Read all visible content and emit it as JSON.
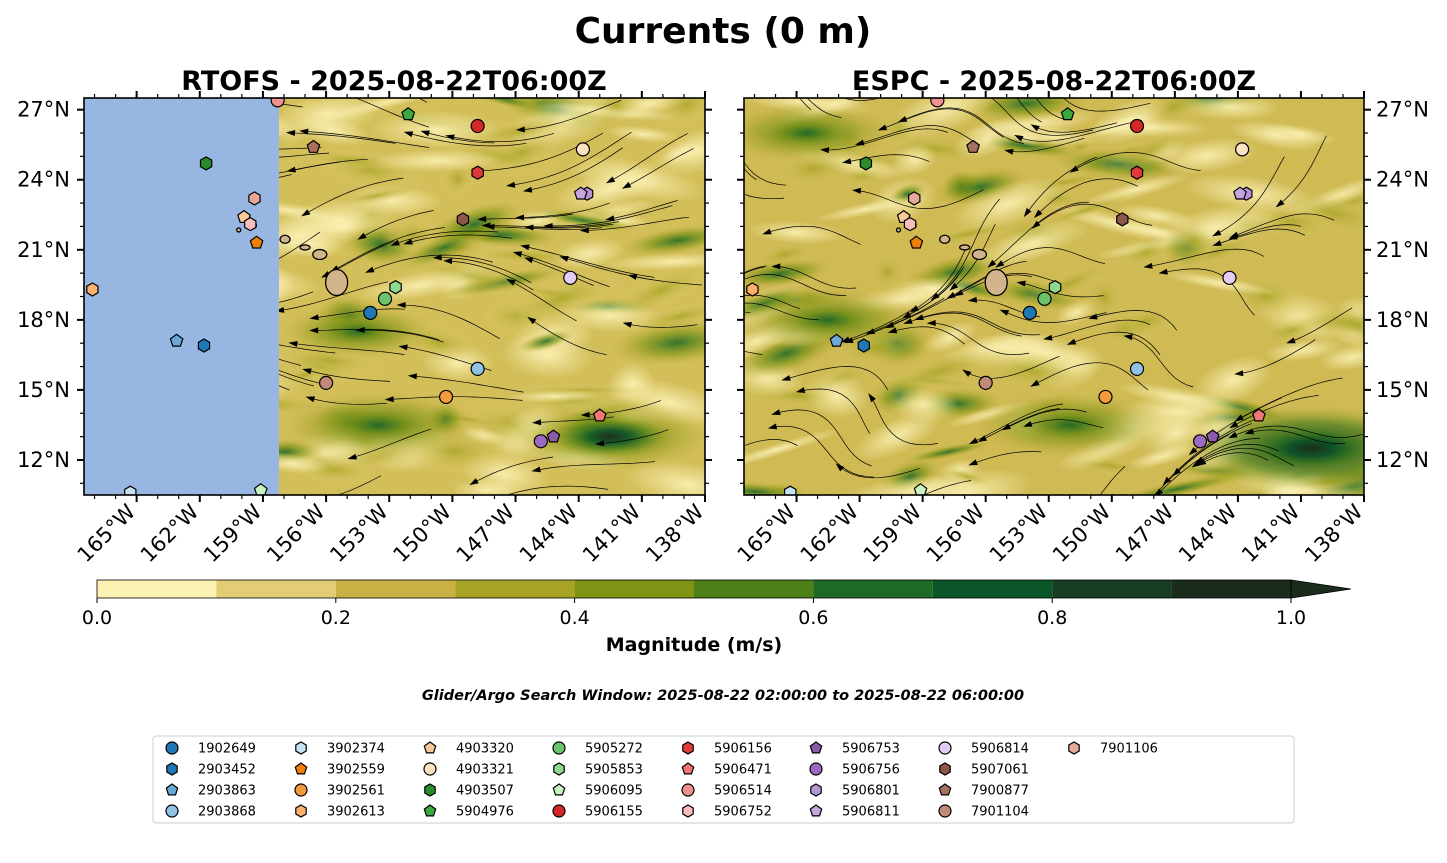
{
  "figure_title": "Currents (0 m)",
  "search_window_note": "Glider/Argo Search Window: 2025-08-22 02:00:00 to 2025-08-22 06:00:00",
  "chart_data": [
    {
      "type": "map",
      "panel": "left",
      "title": "RTOFS - 2025-08-22T06:00Z",
      "field": "surface current magnitude (m/s) with streamlines",
      "lon_range": [
        -167.5,
        -138
      ],
      "lat_range": [
        10.5,
        27.5
      ],
      "xticks": [
        -165,
        -162,
        -159,
        -156,
        -153,
        -150,
        -147,
        -144,
        -141,
        -138
      ],
      "xtick_labels": [
        "165°W",
        "162°W",
        "159°W",
        "156°W",
        "153°W",
        "150°W",
        "147°W",
        "144°W",
        "141°W",
        "138°W"
      ],
      "yticks": [
        12,
        15,
        18,
        21,
        24,
        27
      ],
      "ytick_labels": [
        "12°N",
        "15°N",
        "18°N",
        "21°N",
        "24°N",
        "27°N"
      ],
      "yaxis_side": "left",
      "no_data_west_of_lon": -158.2,
      "strong_current_areas": [
        {
          "lon": -153.5,
          "lat": 13.5,
          "magnitude": 0.7
        },
        {
          "lon": -142.5,
          "lat": 13.0,
          "magnitude": 0.75
        },
        {
          "lon": -154.5,
          "lat": 17.5,
          "magnitude": 0.45
        }
      ]
    },
    {
      "type": "map",
      "panel": "right",
      "title": "ESPC - 2025-08-22T06:00Z",
      "field": "surface current magnitude (m/s) with streamlines",
      "lon_range": [
        -167.5,
        -138
      ],
      "lat_range": [
        10.5,
        27.5
      ],
      "xticks": [
        -165,
        -162,
        -159,
        -156,
        -153,
        -150,
        -147,
        -144,
        -141,
        -138
      ],
      "xtick_labels": [
        "165°W",
        "162°W",
        "159°W",
        "156°W",
        "153°W",
        "150°W",
        "147°W",
        "144°W",
        "141°W",
        "138°W"
      ],
      "yticks": [
        12,
        15,
        18,
        21,
        24,
        27
      ],
      "ytick_labels": [
        "12°N",
        "15°N",
        "18°N",
        "21°N",
        "24°N",
        "27°N"
      ],
      "yaxis_side": "right",
      "strong_current_areas": [
        {
          "lon": -140.5,
          "lat": 12.5,
          "magnitude": 0.95
        },
        {
          "lon": -152.0,
          "lat": 13.5,
          "magnitude": 0.65
        },
        {
          "lon": -163.5,
          "lat": 18.0,
          "magnitude": 0.6
        },
        {
          "lon": -164.5,
          "lat": 26.0,
          "magnitude": 0.55
        }
      ]
    }
  ],
  "colorbar": {
    "label": "Magnitude (m/s)",
    "min": 0.0,
    "max": 1.0,
    "extend": "max",
    "tick_values": [
      0.0,
      0.2,
      0.4,
      0.6,
      0.8,
      1.0
    ],
    "tick_labels": [
      "0.0",
      "0.2",
      "0.4",
      "0.6",
      "0.8",
      "1.0"
    ],
    "levels": [
      {
        "from": 0.0,
        "to": 0.1,
        "color": "#fbf1b3"
      },
      {
        "from": 0.1,
        "to": 0.2,
        "color": "#e3cd74"
      },
      {
        "from": 0.2,
        "to": 0.3,
        "color": "#c9b243"
      },
      {
        "from": 0.3,
        "to": 0.4,
        "color": "#a7a424"
      },
      {
        "from": 0.4,
        "to": 0.5,
        "color": "#7f9414"
      },
      {
        "from": 0.5,
        "to": 0.6,
        "color": "#4d8019"
      },
      {
        "from": 0.6,
        "to": 0.7,
        "color": "#206a27"
      },
      {
        "from": 0.7,
        "to": 0.8,
        "color": "#0b5628"
      },
      {
        "from": 0.8,
        "to": 0.9,
        "color": "#173d24"
      },
      {
        "from": 0.9,
        "to": 1.0,
        "color": "#1c2c1c"
      }
    ]
  },
  "platforms": [
    {
      "id": "1902649",
      "marker": "circle",
      "color": "#1f77b4",
      "lon": -153.9,
      "lat": 18.3
    },
    {
      "id": "2903452",
      "marker": "hexagon",
      "color": "#1f77b4",
      "lon": -161.8,
      "lat": 16.9
    },
    {
      "id": "2903863",
      "marker": "pentagon",
      "color": "#6aa8d8",
      "lon": -163.1,
      "lat": 17.1
    },
    {
      "id": "2903868",
      "marker": "circle",
      "color": "#8fc2e4",
      "lon": -148.8,
      "lat": 15.9
    },
    {
      "id": "3902374",
      "marker": "hexagon",
      "color": "#c6e2f4",
      "lon": -165.3,
      "lat": 10.6
    },
    {
      "id": "3902559",
      "marker": "pentagon",
      "color": "#f07f0a",
      "lon": -159.3,
      "lat": 21.3
    },
    {
      "id": "3902561",
      "marker": "circle",
      "color": "#f39a3c",
      "lon": -150.3,
      "lat": 14.7
    },
    {
      "id": "3902613",
      "marker": "hexagon",
      "color": "#fbb06e",
      "lon": -167.1,
      "lat": 19.3
    },
    {
      "id": "4903320",
      "marker": "pentagon",
      "color": "#f9c99a",
      "lon": -159.9,
      "lat": 22.4
    },
    {
      "id": "4903321",
      "marker": "circle",
      "color": "#fde2c2",
      "lon": -143.8,
      "lat": 25.3
    },
    {
      "id": "4903507",
      "marker": "hexagon",
      "color": "#2a8c2a",
      "lon": -161.7,
      "lat": 24.7
    },
    {
      "id": "5904976",
      "marker": "pentagon",
      "color": "#3daa3d",
      "lon": -152.1,
      "lat": 26.8
    },
    {
      "id": "5905272",
      "marker": "circle",
      "color": "#6bc46b",
      "lon": -153.2,
      "lat": 18.9
    },
    {
      "id": "5905853",
      "marker": "hexagon",
      "color": "#8fd98f",
      "lon": -152.7,
      "lat": 19.4
    },
    {
      "id": "5906095",
      "marker": "pentagon",
      "color": "#c8f2c0",
      "lon": -159.1,
      "lat": 10.7
    },
    {
      "id": "5906155",
      "marker": "circle",
      "color": "#d62728",
      "lon": -148.8,
      "lat": 26.3
    },
    {
      "id": "5906156",
      "marker": "hexagon",
      "color": "#e0393a",
      "lon": -148.8,
      "lat": 24.3
    },
    {
      "id": "5906471",
      "marker": "pentagon",
      "color": "#f07677",
      "lon": -143.0,
      "lat": 13.9
    },
    {
      "id": "5906514",
      "marker": "circle",
      "color": "#f2908f",
      "lon": -158.3,
      "lat": 27.4
    },
    {
      "id": "5906752",
      "marker": "hexagon",
      "color": "#f7bcbb",
      "lon": -159.6,
      "lat": 22.1
    },
    {
      "id": "5906753",
      "marker": "pentagon",
      "color": "#8c5aa8",
      "lon": -145.2,
      "lat": 13.0
    },
    {
      "id": "5906756",
      "marker": "circle",
      "color": "#9a6bc0",
      "lon": -145.8,
      "lat": 12.8
    },
    {
      "id": "5906801",
      "marker": "hexagon",
      "color": "#b794d6",
      "lon": -143.6,
      "lat": 23.4
    },
    {
      "id": "5906811",
      "marker": "pentagon",
      "color": "#c7a5e0",
      "lon": -143.9,
      "lat": 23.4
    },
    {
      "id": "5906814",
      "marker": "circle",
      "color": "#e3ccf4",
      "lon": -144.4,
      "lat": 19.8
    },
    {
      "id": "5907061",
      "marker": "hexagon",
      "color": "#8c564b",
      "lon": -149.5,
      "lat": 22.3
    },
    {
      "id": "7900877",
      "marker": "pentagon",
      "color": "#a8705f",
      "lon": -156.6,
      "lat": 25.4
    },
    {
      "id": "7901104",
      "marker": "circle",
      "color": "#c28a78",
      "lon": -156.0,
      "lat": 15.3
    },
    {
      "id": "7901106",
      "marker": "hexagon",
      "color": "#e6a898",
      "lon": -159.4,
      "lat": 23.2
    }
  ]
}
